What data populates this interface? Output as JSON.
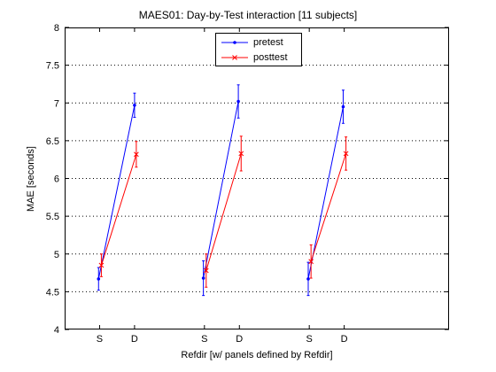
{
  "chart_data": {
    "type": "line",
    "title": "MAES01: Day-by-Test interaction  [11 subjects]",
    "xlabel": "Refdir  [w/ panels defined by Refdir]",
    "ylabel": "MAE [seconds]",
    "ylim": [
      4,
      8
    ],
    "yticks": [
      4,
      4.5,
      5,
      5.5,
      6,
      6.5,
      7,
      7.5,
      8
    ],
    "ytick_labels": [
      "4",
      "4.5",
      "5",
      "5.5",
      "6",
      "6.5",
      "7",
      "7.5",
      "8"
    ],
    "x_range": [
      0,
      11
    ],
    "xticks": [
      1,
      2,
      4,
      5,
      7,
      8
    ],
    "xtick_labels": [
      "S",
      "D",
      "S",
      "D",
      "S",
      "D"
    ],
    "grid": "y-dotted",
    "legend_position": "top-center",
    "panels": [
      {
        "series": [
          {
            "name": "pretest",
            "x": [
              0.97,
              2.0
            ],
            "y": [
              4.67,
              6.97
            ],
            "err": [
              0.15,
              0.16
            ]
          },
          {
            "name": "posttest",
            "x": [
              1.05,
              2.05
            ],
            "y": [
              4.85,
              6.32
            ],
            "err": [
              0.15,
              0.17
            ]
          }
        ]
      },
      {
        "series": [
          {
            "name": "pretest",
            "x": [
              3.97,
              4.97
            ],
            "y": [
              4.68,
              7.02
            ],
            "err": [
              0.23,
              0.22
            ]
          },
          {
            "name": "posttest",
            "x": [
              4.05,
              5.05
            ],
            "y": [
              4.78,
              6.33
            ],
            "err": [
              0.22,
              0.23
            ]
          }
        ]
      },
      {
        "series": [
          {
            "name": "pretest",
            "x": [
              6.97,
              7.97
            ],
            "y": [
              4.67,
              6.95
            ],
            "err": [
              0.22,
              0.22
            ]
          },
          {
            "name": "posttest",
            "x": [
              7.05,
              8.05
            ],
            "y": [
              4.9,
              6.33
            ],
            "err": [
              0.22,
              0.22
            ]
          }
        ]
      }
    ],
    "colors": {
      "pretest": "#0000ff",
      "posttest": "#ff0000"
    },
    "markers": {
      "pretest": "dot",
      "posttest": "x"
    }
  },
  "legend": {
    "pretest_label": "pretest",
    "posttest_label": "posttest"
  }
}
